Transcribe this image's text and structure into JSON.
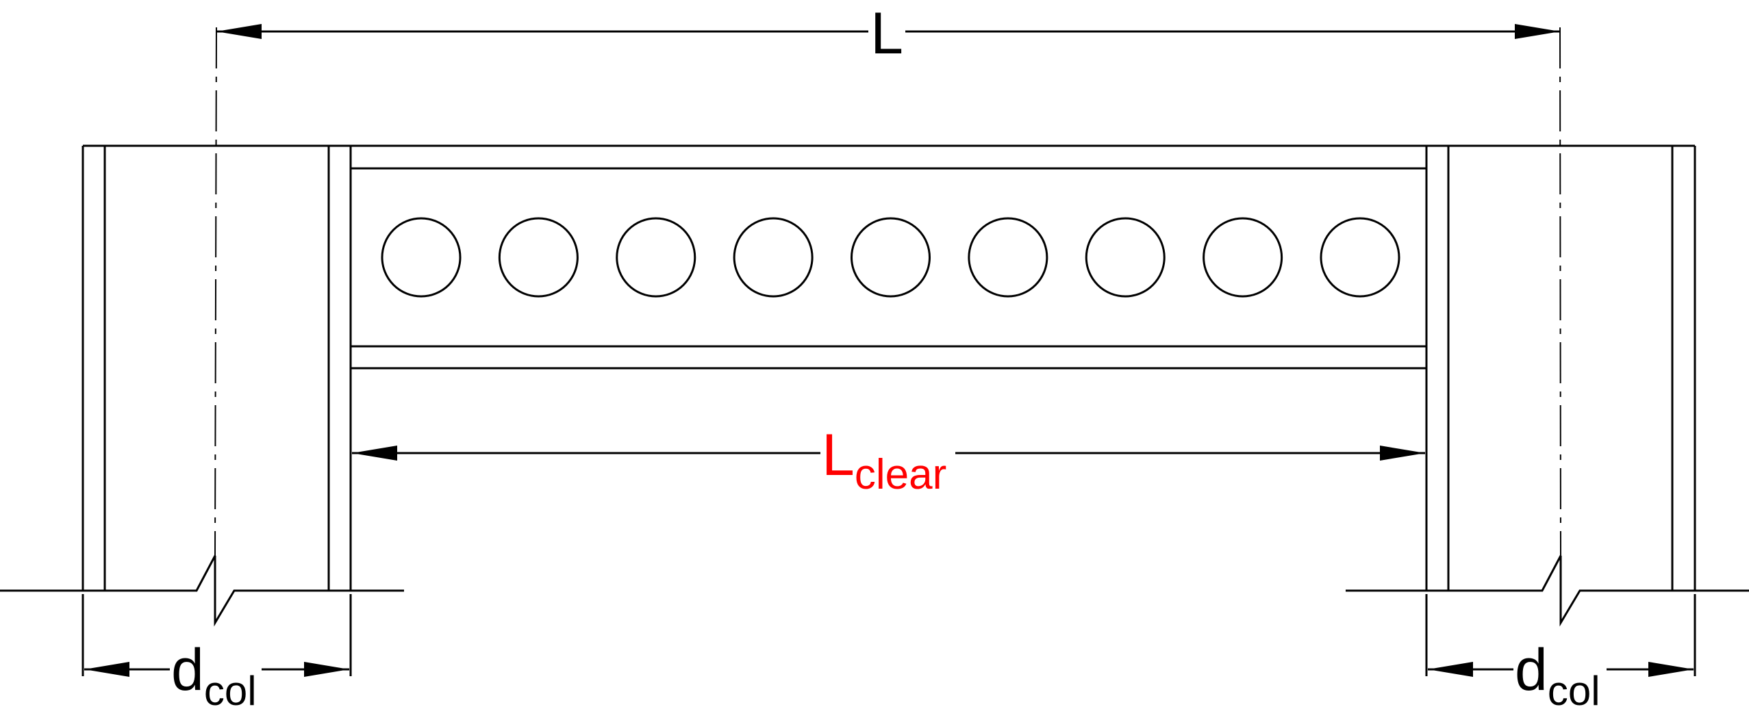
{
  "labels": {
    "overall_length": "L",
    "clear_length_main": "L",
    "clear_length_sub": "clear",
    "column_depth_main": "d",
    "column_depth_sub": "col"
  },
  "colors": {
    "line": "#000000",
    "clear_label": "#ff0000"
  },
  "beam": {
    "web_opening_count": 9
  }
}
